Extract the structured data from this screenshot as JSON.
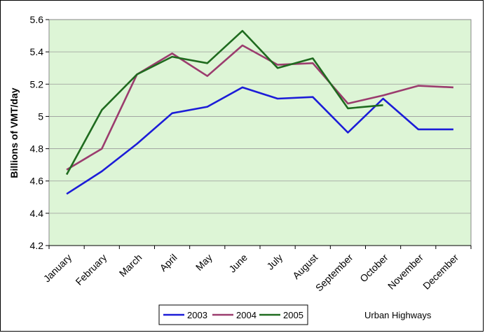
{
  "chart_data": {
    "type": "line",
    "title": "",
    "xlabel": "",
    "ylabel": "Billions of VMT/day",
    "annotation": "Urban Highways",
    "categories": [
      "January",
      "February",
      "March",
      "April",
      "May",
      "June",
      "July",
      "August",
      "September",
      "October",
      "November",
      "December"
    ],
    "y_ticks": [
      "4.2",
      "4.4",
      "4.6",
      "4.8",
      "5",
      "5.2",
      "5.4",
      "5.6"
    ],
    "ylim": [
      4.2,
      5.6
    ],
    "grid": true,
    "legend_position": "bottom",
    "plot_background": "#ddf5d6",
    "series": [
      {
        "name": "2003",
        "color": "#1c1cd8",
        "values": [
          4.52,
          4.66,
          4.83,
          5.02,
          5.06,
          5.18,
          5.11,
          5.12,
          4.9,
          5.11,
          4.92,
          4.92
        ]
      },
      {
        "name": "2004",
        "color": "#9b3c6e",
        "values": [
          4.67,
          4.8,
          5.26,
          5.39,
          5.25,
          5.44,
          5.32,
          5.33,
          5.08,
          5.13,
          5.19,
          5.18
        ]
      },
      {
        "name": "2005",
        "color": "#1f6b1f",
        "values": [
          4.64,
          5.04,
          5.26,
          5.37,
          5.33,
          5.53,
          5.3,
          5.36,
          5.05,
          5.07,
          null,
          null
        ]
      }
    ]
  }
}
